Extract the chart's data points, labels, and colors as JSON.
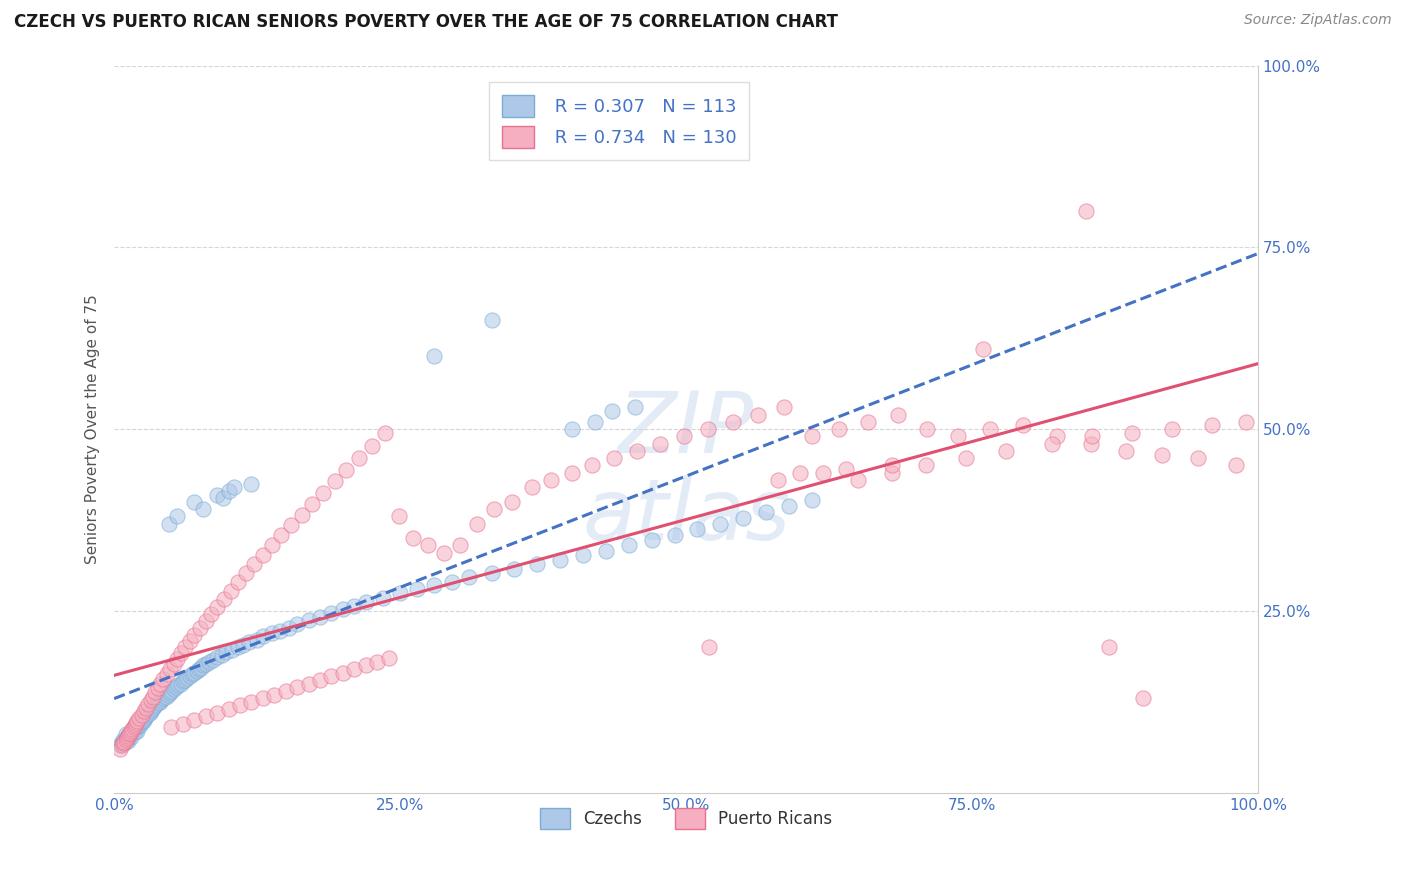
{
  "title": "CZECH VS PUERTO RICAN SENIORS POVERTY OVER THE AGE OF 75 CORRELATION CHART",
  "source": "Source: ZipAtlas.com",
  "ylabel": "Seniors Poverty Over the Age of 75",
  "xlim": [
    0.0,
    1.0
  ],
  "ylim": [
    0.0,
    1.0
  ],
  "xtick_labels": [
    "0.0%",
    "25.0%",
    "50.0%",
    "75.0%",
    "100.0%"
  ],
  "xtick_positions": [
    0.0,
    0.25,
    0.5,
    0.75,
    1.0
  ],
  "ytick_labels": [
    "25.0%",
    "50.0%",
    "75.0%",
    "100.0%"
  ],
  "ytick_positions": [
    0.25,
    0.5,
    0.75,
    1.0
  ],
  "czech_color": "#adc8e8",
  "czech_edge_color": "#7aadd4",
  "puerto_rican_color": "#f5afc0",
  "puerto_rican_edge_color": "#e87090",
  "czech_line_color": "#4472c4",
  "czech_line_style": "--",
  "puerto_rican_line_color": "#e05070",
  "puerto_rican_line_style": "-",
  "R_czech": 0.307,
  "N_czech": 113,
  "R_puerto_rican": 0.734,
  "N_puerto_rican": 130,
  "legend_label_czech": "Czechs",
  "legend_label_puerto_rican": "Puerto Ricans",
  "background_color": "#ffffff",
  "grid_color": "#cccccc",
  "legend_text_color": "#4472c4",
  "marker_size": 120,
  "marker_alpha": 0.55,
  "ytick_side": "right",
  "czech_x": [
    0.005,
    0.007,
    0.008,
    0.009,
    0.01,
    0.01,
    0.011,
    0.012,
    0.012,
    0.013,
    0.014,
    0.015,
    0.015,
    0.016,
    0.017,
    0.018,
    0.019,
    0.02,
    0.02,
    0.021,
    0.022,
    0.023,
    0.024,
    0.025,
    0.026,
    0.027,
    0.028,
    0.03,
    0.031,
    0.032,
    0.033,
    0.035,
    0.036,
    0.038,
    0.04,
    0.041,
    0.043,
    0.045,
    0.047,
    0.049,
    0.05,
    0.052,
    0.054,
    0.056,
    0.058,
    0.06,
    0.062,
    0.064,
    0.066,
    0.068,
    0.07,
    0.072,
    0.074,
    0.076,
    0.078,
    0.08,
    0.083,
    0.086,
    0.09,
    0.094,
    0.098,
    0.103,
    0.108,
    0.113,
    0.118,
    0.125,
    0.13,
    0.138,
    0.145,
    0.153,
    0.16,
    0.17,
    0.18,
    0.19,
    0.2,
    0.21,
    0.22,
    0.235,
    0.25,
    0.265,
    0.28,
    0.295,
    0.31,
    0.33,
    0.35,
    0.37,
    0.39,
    0.41,
    0.43,
    0.45,
    0.47,
    0.49,
    0.51,
    0.53,
    0.55,
    0.57,
    0.59,
    0.61,
    0.28,
    0.33,
    0.4,
    0.42,
    0.435,
    0.455,
    0.048,
    0.055,
    0.07,
    0.078,
    0.09,
    0.095,
    0.1,
    0.105,
    0.12
  ],
  "czech_y": [
    0.065,
    0.07,
    0.072,
    0.068,
    0.075,
    0.08,
    0.073,
    0.071,
    0.078,
    0.076,
    0.08,
    0.082,
    0.077,
    0.084,
    0.086,
    0.083,
    0.088,
    0.09,
    0.085,
    0.092,
    0.095,
    0.093,
    0.097,
    0.098,
    0.1,
    0.103,
    0.105,
    0.108,
    0.11,
    0.112,
    0.115,
    0.118,
    0.12,
    0.123,
    0.125,
    0.127,
    0.13,
    0.132,
    0.135,
    0.137,
    0.14,
    0.143,
    0.145,
    0.148,
    0.15,
    0.153,
    0.155,
    0.158,
    0.16,
    0.163,
    0.165,
    0.167,
    0.17,
    0.172,
    0.175,
    0.177,
    0.18,
    0.183,
    0.186,
    0.19,
    0.193,
    0.196,
    0.2,
    0.203,
    0.207,
    0.21,
    0.215,
    0.219,
    0.223,
    0.227,
    0.232,
    0.237,
    0.242,
    0.247,
    0.252,
    0.257,
    0.262,
    0.268,
    0.274,
    0.28,
    0.285,
    0.29,
    0.296,
    0.302,
    0.308,
    0.314,
    0.32,
    0.327,
    0.333,
    0.34,
    0.347,
    0.354,
    0.362,
    0.37,
    0.378,
    0.386,
    0.394,
    0.402,
    0.6,
    0.65,
    0.5,
    0.51,
    0.525,
    0.53,
    0.37,
    0.38,
    0.4,
    0.39,
    0.41,
    0.405,
    0.415,
    0.42,
    0.425
  ],
  "pr_x": [
    0.005,
    0.007,
    0.008,
    0.009,
    0.01,
    0.011,
    0.012,
    0.013,
    0.014,
    0.015,
    0.016,
    0.017,
    0.018,
    0.019,
    0.02,
    0.022,
    0.024,
    0.026,
    0.028,
    0.03,
    0.032,
    0.034,
    0.036,
    0.038,
    0.04,
    0.043,
    0.046,
    0.049,
    0.052,
    0.055,
    0.058,
    0.062,
    0.066,
    0.07,
    0.075,
    0.08,
    0.085,
    0.09,
    0.096,
    0.102,
    0.108,
    0.115,
    0.122,
    0.13,
    0.138,
    0.146,
    0.155,
    0.164,
    0.173,
    0.183,
    0.193,
    0.203,
    0.214,
    0.225,
    0.237,
    0.249,
    0.261,
    0.274,
    0.288,
    0.302,
    0.317,
    0.332,
    0.348,
    0.365,
    0.382,
    0.4,
    0.418,
    0.437,
    0.457,
    0.477,
    0.498,
    0.519,
    0.541,
    0.563,
    0.586,
    0.61,
    0.634,
    0.659,
    0.685,
    0.711,
    0.738,
    0.766,
    0.795,
    0.824,
    0.854,
    0.885,
    0.916,
    0.948,
    0.981,
    0.62,
    0.65,
    0.68,
    0.71,
    0.745,
    0.78,
    0.82,
    0.855,
    0.89,
    0.925,
    0.96,
    0.99,
    0.58,
    0.6,
    0.64,
    0.68,
    0.05,
    0.06,
    0.07,
    0.08,
    0.09,
    0.1,
    0.11,
    0.12,
    0.13,
    0.14,
    0.15,
    0.16,
    0.17,
    0.18,
    0.19,
    0.2,
    0.21,
    0.22,
    0.23,
    0.24,
    0.76,
    0.52,
    0.85,
    0.87,
    0.9
  ],
  "pr_y": [
    0.06,
    0.065,
    0.068,
    0.07,
    0.072,
    0.075,
    0.078,
    0.08,
    0.082,
    0.085,
    0.088,
    0.09,
    0.093,
    0.096,
    0.098,
    0.102,
    0.107,
    0.112,
    0.117,
    0.122,
    0.127,
    0.132,
    0.138,
    0.144,
    0.15,
    0.156,
    0.163,
    0.17,
    0.177,
    0.184,
    0.192,
    0.2,
    0.208,
    0.217,
    0.226,
    0.236,
    0.246,
    0.256,
    0.267,
    0.278,
    0.29,
    0.302,
    0.314,
    0.327,
    0.34,
    0.354,
    0.368,
    0.382,
    0.397,
    0.412,
    0.428,
    0.444,
    0.46,
    0.477,
    0.494,
    0.38,
    0.35,
    0.34,
    0.33,
    0.34,
    0.37,
    0.39,
    0.4,
    0.42,
    0.43,
    0.44,
    0.45,
    0.46,
    0.47,
    0.48,
    0.49,
    0.5,
    0.51,
    0.52,
    0.53,
    0.49,
    0.5,
    0.51,
    0.52,
    0.5,
    0.49,
    0.5,
    0.505,
    0.49,
    0.48,
    0.47,
    0.465,
    0.46,
    0.45,
    0.44,
    0.43,
    0.44,
    0.45,
    0.46,
    0.47,
    0.48,
    0.49,
    0.495,
    0.5,
    0.505,
    0.51,
    0.43,
    0.44,
    0.445,
    0.45,
    0.09,
    0.095,
    0.1,
    0.105,
    0.11,
    0.115,
    0.12,
    0.125,
    0.13,
    0.135,
    0.14,
    0.145,
    0.15,
    0.155,
    0.16,
    0.165,
    0.17,
    0.175,
    0.18,
    0.185,
    0.61,
    0.2,
    0.8,
    0.2,
    0.13
  ]
}
